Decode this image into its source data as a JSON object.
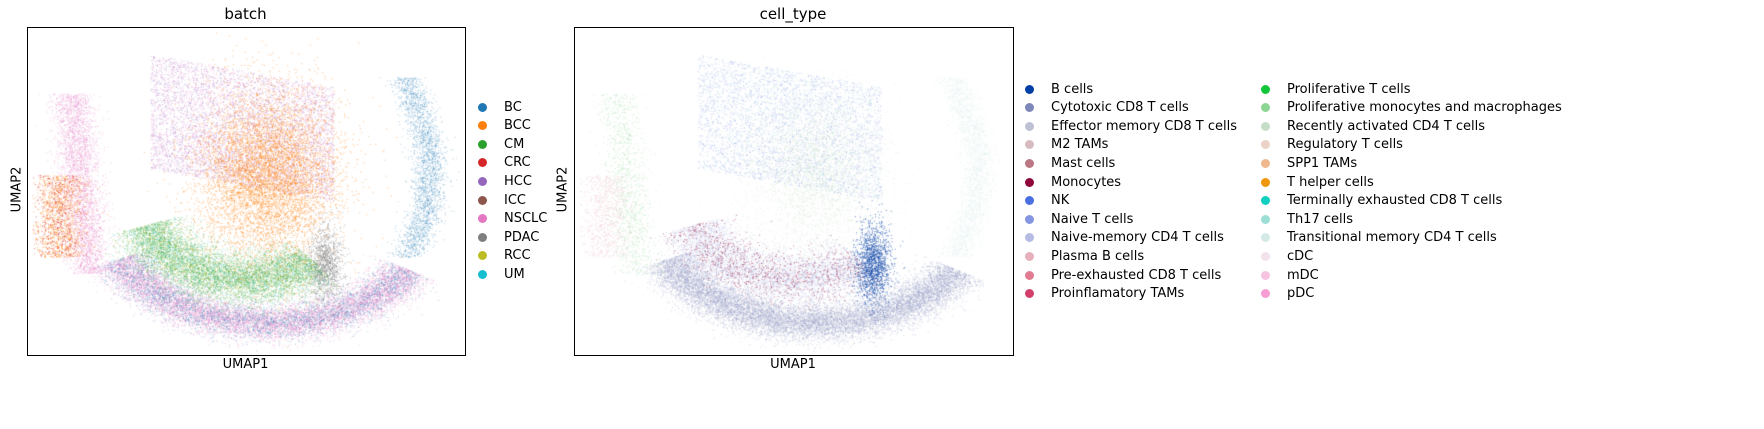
{
  "chart_data": [
    {
      "type": "scatter",
      "title": "batch",
      "xlabel": "UMAP1",
      "ylabel": "UMAP2",
      "axes_ticks": "none",
      "grid": false,
      "legend_placement": "right-outside",
      "series": [
        {
          "name": "BC",
          "color": "#1f77b4"
        },
        {
          "name": "BCC",
          "color": "#ff7f0e"
        },
        {
          "name": "CM",
          "color": "#2ca02c"
        },
        {
          "name": "CRC",
          "color": "#d62728"
        },
        {
          "name": "HCC",
          "color": "#9467bd"
        },
        {
          "name": "ICC",
          "color": "#8c564b"
        },
        {
          "name": "NSCLC",
          "color": "#e377c2"
        },
        {
          "name": "PDAC",
          "color": "#7f7f7f"
        },
        {
          "name": "RCC",
          "color": "#bcbd22"
        },
        {
          "name": "UM",
          "color": "#17becf"
        }
      ]
    },
    {
      "type": "scatter",
      "title": "cell_type",
      "xlabel": "UMAP1",
      "ylabel": "UMAP2",
      "axes_ticks": "none",
      "grid": false,
      "legend_placement": "right-outside",
      "series": [
        {
          "name": "B cells",
          "color": "#023fa5"
        },
        {
          "name": "Cytotoxic CD8 T cells",
          "color": "#7d87b9"
        },
        {
          "name": "Effector memory CD8 T cells",
          "color": "#bec1d4"
        },
        {
          "name": "M2 TAMs",
          "color": "#d6bcc0"
        },
        {
          "name": "Mast cells",
          "color": "#bb7784"
        },
        {
          "name": "Monocytes",
          "color": "#8e063b"
        },
        {
          "name": "NK",
          "color": "#4a6fe3"
        },
        {
          "name": "Naive T cells",
          "color": "#8595e1"
        },
        {
          "name": "Naive-memory CD4 T cells",
          "color": "#b5bbe3"
        },
        {
          "name": "Plasma B cells",
          "color": "#e6afb9"
        },
        {
          "name": "Pre-exhausted CD8 T cells",
          "color": "#e07b91"
        },
        {
          "name": "Proinflamatory TAMs",
          "color": "#d33f6a"
        },
        {
          "name": "Proliferative T cells",
          "color": "#11c638"
        },
        {
          "name": "Proliferative monocytes and macrophages",
          "color": "#8dd593"
        },
        {
          "name": "Recently activated CD4 T cells",
          "color": "#c6dec7"
        },
        {
          "name": "Regulatory T cells",
          "color": "#ead3c6"
        },
        {
          "name": "SPP1 TAMs",
          "color": "#f0b98d"
        },
        {
          "name": "T helper cells",
          "color": "#ef9708"
        },
        {
          "name": "Terminally exhausted CD8 T cells",
          "color": "#0fcfc0"
        },
        {
          "name": "Th17 cells",
          "color": "#9cded6"
        },
        {
          "name": "Transitional memory CD4 T cells",
          "color": "#d5eae7"
        },
        {
          "name": "cDC",
          "color": "#f3e1eb"
        },
        {
          "name": "mDC",
          "color": "#f6c4e1"
        },
        {
          "name": "pDC",
          "color": "#f79cd4"
        }
      ]
    }
  ]
}
